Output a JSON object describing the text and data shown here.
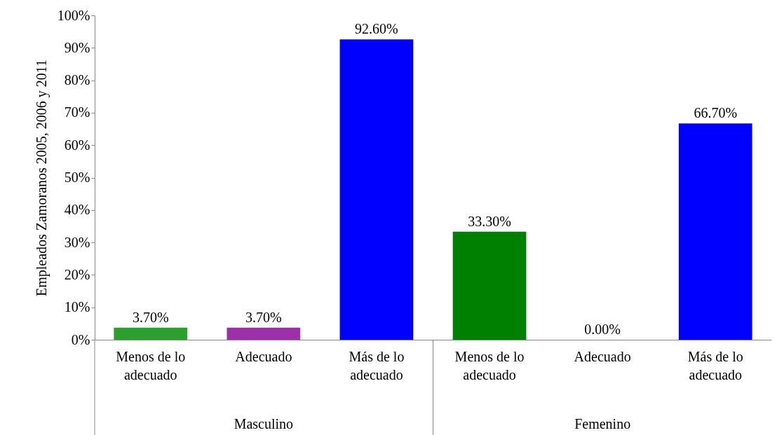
{
  "chart_data": {
    "type": "bar",
    "ylabel": "Empleados Zamoranos 2005, 2006 y 2011",
    "categories": [
      "Menos de lo adecuado",
      "Adecuado",
      "Más de lo adecuado",
      "Menos de lo adecuado",
      "Adecuado",
      "Más de lo adecuado"
    ],
    "values": [
      3.7,
      3.7,
      92.6,
      33.3,
      0,
      66.7
    ],
    "value_labels": [
      "3.70%",
      "3.70%",
      "92.60%",
      "33.30%",
      "0.00%",
      "66.70%"
    ],
    "colors": [
      "#2ca02c",
      "#9b30a8",
      "#0000ff",
      "#008000",
      "#9b30a8",
      "#0000ff"
    ],
    "ylim": [
      0,
      100
    ],
    "yticks": [
      {
        "value": 0,
        "label": "0%"
      },
      {
        "value": 10,
        "label": "10%"
      },
      {
        "value": 20,
        "label": "20%"
      },
      {
        "value": 30,
        "label": "30%"
      },
      {
        "value": 40,
        "label": "40%"
      },
      {
        "value": 50,
        "label": "50%"
      },
      {
        "value": 60,
        "label": "60%"
      },
      {
        "value": 70,
        "label": "70%"
      },
      {
        "value": 80,
        "label": "80%"
      },
      {
        "value": 90,
        "label": "90%"
      },
      {
        "value": 100,
        "label": "100%"
      }
    ],
    "annotations": [
      "Masculino",
      "Femenino"
    ],
    "grid": false
  }
}
